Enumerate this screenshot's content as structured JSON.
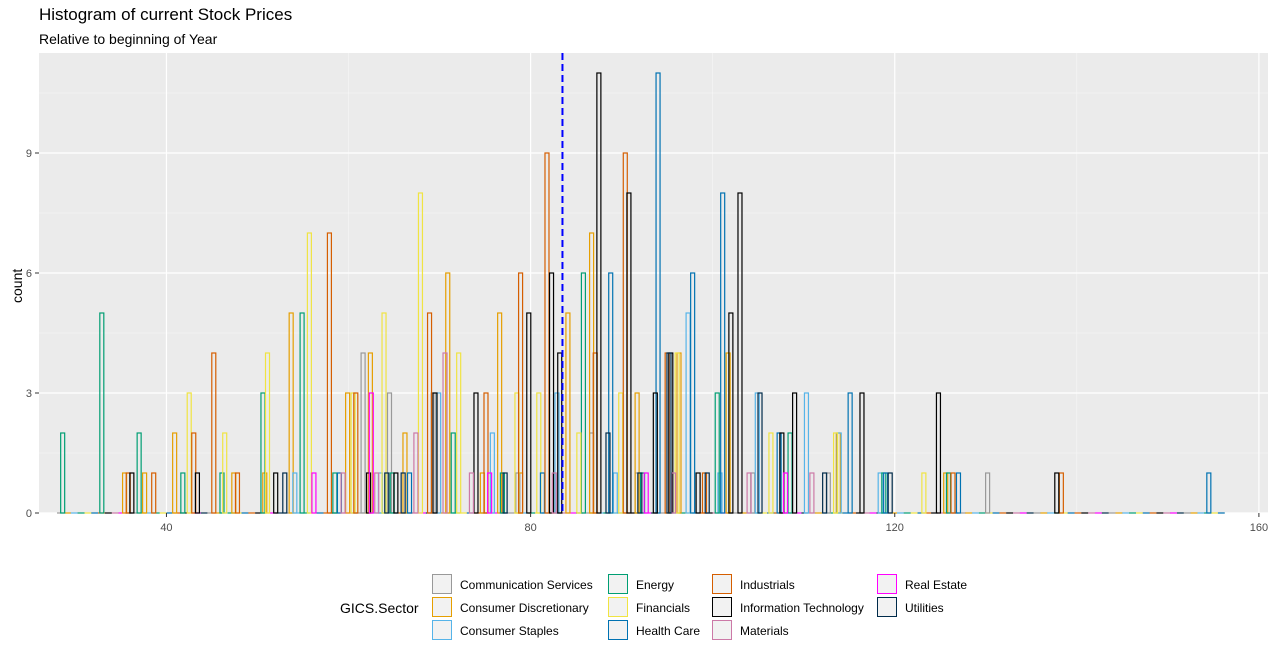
{
  "chart_data": {
    "type": "bar",
    "subtype": "histogram (outline bars, dodged by sector)",
    "title": "Histogram of current Stock Prices",
    "subtitle": "Relative to beginning of Year",
    "xlabel": "",
    "ylabel": "count",
    "xlim": [
      26,
      161
    ],
    "ylim": [
      0,
      11.5
    ],
    "x_ticks": [
      40,
      80,
      120,
      160
    ],
    "y_ticks": [
      0,
      3,
      6,
      9
    ],
    "grid": true,
    "mean_line": {
      "x": 83.5,
      "style": "dashed",
      "color": "#0000ff"
    },
    "legend": {
      "title": "GICS.Sector",
      "placement": "bottom"
    },
    "series": [
      {
        "name": "Communication Services",
        "color": "#999999",
        "points": [
          [
            61.6,
            4
          ],
          [
            64.5,
            3
          ],
          [
            69.3,
            3
          ],
          [
            78.6,
            1
          ],
          [
            86.7,
            2
          ],
          [
            91.7,
            1
          ],
          [
            104.4,
            1
          ],
          [
            112.7,
            1
          ],
          [
            130.2,
            1
          ]
        ]
      },
      {
        "name": "Consumer Discretionary",
        "color": "#e69f00",
        "points": [
          [
            35.4,
            1
          ],
          [
            37.6,
            1
          ],
          [
            40.9,
            2
          ],
          [
            47.4,
            1
          ],
          [
            50.8,
            1
          ],
          [
            53.7,
            5
          ],
          [
            59.9,
            3
          ],
          [
            62.4,
            4
          ],
          [
            66.2,
            2
          ],
          [
            70.9,
            6
          ],
          [
            74.7,
            1
          ],
          [
            76.6,
            5
          ],
          [
            78.9,
            1
          ],
          [
            84.1,
            5
          ],
          [
            86.7,
            7
          ],
          [
            91.7,
            3
          ],
          [
            96.3,
            4
          ],
          [
            101.7,
            4
          ],
          [
            113.8,
            2
          ],
          [
            125.6,
            1
          ]
        ]
      },
      {
        "name": "Consumer Staples",
        "color": "#56b4e9",
        "points": [
          [
            54.1,
            1
          ],
          [
            63.5,
            1
          ],
          [
            69.9,
            3
          ],
          [
            75.8,
            2
          ],
          [
            82.9,
            3
          ],
          [
            89.3,
            1
          ],
          [
            97.3,
            5
          ],
          [
            100.8,
            1
          ],
          [
            104.9,
            3
          ],
          [
            110.3,
            3
          ],
          [
            113.9,
            2
          ],
          [
            118.4,
            1
          ]
        ]
      },
      {
        "name": "Energy",
        "color": "#009e73",
        "points": [
          [
            28.6,
            2
          ],
          [
            32.9,
            5
          ],
          [
            37.0,
            2
          ],
          [
            41.8,
            1
          ],
          [
            46.1,
            1
          ],
          [
            50.6,
            3
          ],
          [
            54.9,
            5
          ],
          [
            58.5,
            1
          ],
          [
            64.8,
            1
          ],
          [
            71.5,
            2
          ],
          [
            76.9,
            1
          ],
          [
            85.8,
            6
          ],
          [
            92.3,
            1
          ],
          [
            100.5,
            3
          ],
          [
            108.5,
            2
          ],
          [
            118.8,
            1
          ],
          [
            125.9,
            1
          ]
        ]
      },
      {
        "name": "Financials",
        "color": "#f0e442",
        "points": [
          [
            42.5,
            3
          ],
          [
            46.4,
            2
          ],
          [
            51.1,
            4
          ],
          [
            55.7,
            7
          ],
          [
            60.5,
            3
          ],
          [
            63.9,
            5
          ],
          [
            67.9,
            8
          ],
          [
            72.1,
            4
          ],
          [
            78.5,
            3
          ],
          [
            80.9,
            3
          ],
          [
            85.3,
            2
          ],
          [
            89.9,
            3
          ],
          [
            96.1,
            4
          ],
          [
            106.4,
            2
          ],
          [
            113.5,
            2
          ],
          [
            123.2,
            1
          ]
        ]
      },
      {
        "name": "Health Care",
        "color": "#0072b2",
        "points": [
          [
            59.0,
            1
          ],
          [
            66.7,
            1
          ],
          [
            81.3,
            1
          ],
          [
            88.8,
            6
          ],
          [
            94.0,
            11
          ],
          [
            97.8,
            6
          ],
          [
            101.1,
            8
          ],
          [
            107.3,
            2
          ],
          [
            115.1,
            3
          ],
          [
            119.0,
            1
          ],
          [
            127.0,
            1
          ],
          [
            154.5,
            1
          ]
        ]
      },
      {
        "name": "Industrials",
        "color": "#d55e00",
        "points": [
          [
            35.8,
            1
          ],
          [
            38.6,
            1
          ],
          [
            43.0,
            2
          ],
          [
            45.2,
            4
          ],
          [
            47.8,
            1
          ],
          [
            57.9,
            7
          ],
          [
            60.8,
            3
          ],
          [
            68.9,
            5
          ],
          [
            75.1,
            3
          ],
          [
            78.9,
            6
          ],
          [
            81.8,
            9
          ],
          [
            87.1,
            4
          ],
          [
            90.4,
            9
          ],
          [
            95.0,
            4
          ],
          [
            99.1,
            1
          ],
          [
            126.4,
            1
          ],
          [
            138.3,
            1
          ]
        ]
      },
      {
        "name": "Information Technology",
        "color": "#000000",
        "points": [
          [
            36.2,
            1
          ],
          [
            43.4,
            1
          ],
          [
            52.0,
            1
          ],
          [
            62.2,
            1
          ],
          [
            65.2,
            1
          ],
          [
            69.5,
            3
          ],
          [
            74.0,
            3
          ],
          [
            79.8,
            5
          ],
          [
            82.3,
            6
          ],
          [
            83.2,
            4
          ],
          [
            87.5,
            11
          ],
          [
            90.8,
            8
          ],
          [
            93.7,
            3
          ],
          [
            95.4,
            4
          ],
          [
            98.4,
            1
          ],
          [
            102.0,
            5
          ],
          [
            103.0,
            8
          ],
          [
            107.6,
            2
          ],
          [
            109.0,
            3
          ],
          [
            116.4,
            3
          ],
          [
            124.8,
            3
          ],
          [
            137.8,
            1
          ]
        ]
      },
      {
        "name": "Materials",
        "color": "#cc79a7",
        "points": [
          [
            59.4,
            1
          ],
          [
            63.1,
            1
          ],
          [
            67.4,
            2
          ],
          [
            70.6,
            4
          ],
          [
            73.5,
            1
          ],
          [
            82.6,
            1
          ],
          [
            95.7,
            1
          ],
          [
            104.0,
            1
          ],
          [
            110.9,
            1
          ]
        ]
      },
      {
        "name": "Real Estate",
        "color": "#ff00ff",
        "points": [
          [
            56.2,
            1
          ],
          [
            62.5,
            3
          ],
          [
            75.5,
            1
          ],
          [
            92.7,
            1
          ],
          [
            108.0,
            1
          ]
        ]
      },
      {
        "name": "Utilities",
        "color": "#002b4a",
        "points": [
          [
            53.0,
            1
          ],
          [
            64.2,
            1
          ],
          [
            66.0,
            1
          ],
          [
            77.2,
            1
          ],
          [
            88.5,
            2
          ],
          [
            92.0,
            1
          ],
          [
            95.2,
            4
          ],
          [
            99.4,
            1
          ],
          [
            105.2,
            3
          ],
          [
            112.3,
            1
          ],
          [
            119.5,
            1
          ]
        ]
      }
    ]
  }
}
